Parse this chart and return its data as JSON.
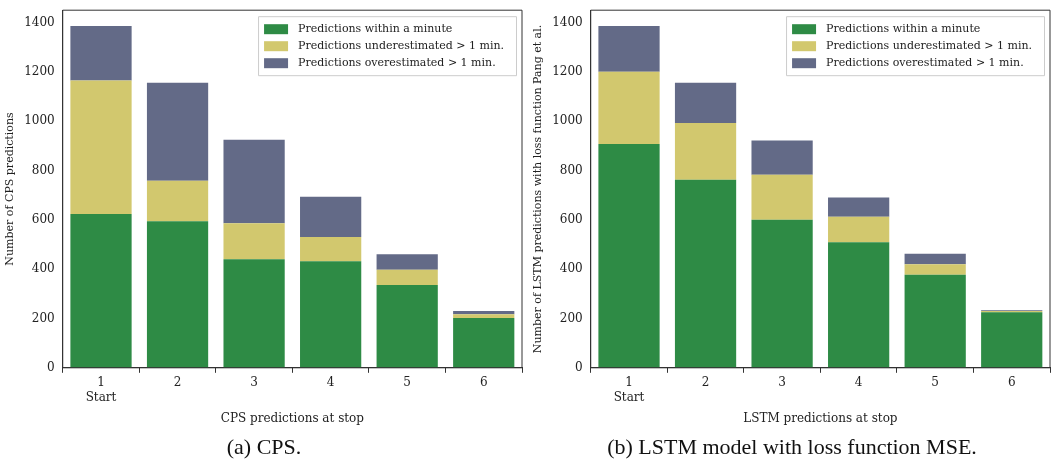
{
  "chart_data": [
    {
      "type": "bar",
      "title": "(a) CPS.",
      "xlabel": "CPS predictions at stop",
      "ylabel": "Number of CPS predictions",
      "categories": [
        "1\nStart",
        "2",
        "3",
        "4",
        "5",
        "6"
      ],
      "stacked": true,
      "legend": "top right",
      "grid": false,
      "ylim": [
        0,
        1450
      ],
      "yticks": [
        0,
        200,
        400,
        600,
        800,
        1000,
        1200,
        1400
      ],
      "series": [
        {
          "name": "Predictions within a minute",
          "color": "#2e8b45",
          "values": [
            624,
            594,
            440,
            432,
            336,
            202
          ]
        },
        {
          "name": "Predictions underestimated > 1 min.",
          "color": "#d2c86e",
          "values": [
            541,
            164,
            146,
            98,
            62,
            15
          ]
        },
        {
          "name": "Predictions overestimated > 1 min.",
          "color": "#636a87",
          "values": [
            221,
            398,
            339,
            164,
            62,
            13
          ]
        }
      ]
    },
    {
      "type": "bar",
      "title": "(b) LSTM model with loss function MSE.",
      "xlabel": "LSTM predictions at stop",
      "ylabel": "Number of LSTM predictions with loss function Pang et al.",
      "categories": [
        "1\nStart",
        "2",
        "3",
        "4",
        "5",
        "6"
      ],
      "stacked": true,
      "legend": "top right",
      "grid": false,
      "ylim": [
        0,
        1450
      ],
      "yticks": [
        0,
        200,
        400,
        600,
        800,
        1000,
        1200,
        1400
      ],
      "series": [
        {
          "name": "Predictions within a minute",
          "color": "#2e8b45",
          "values": [
            907,
            763,
            600,
            509,
            377,
            225
          ]
        },
        {
          "name": "Predictions underestimated > 1 min.",
          "color": "#d2c86e",
          "values": [
            293,
            230,
            183,
            103,
            43,
            5
          ]
        },
        {
          "name": "Predictions overestimated > 1 min.",
          "color": "#636a87",
          "values": [
            186,
            163,
            139,
            79,
            42,
            3
          ]
        }
      ]
    }
  ]
}
